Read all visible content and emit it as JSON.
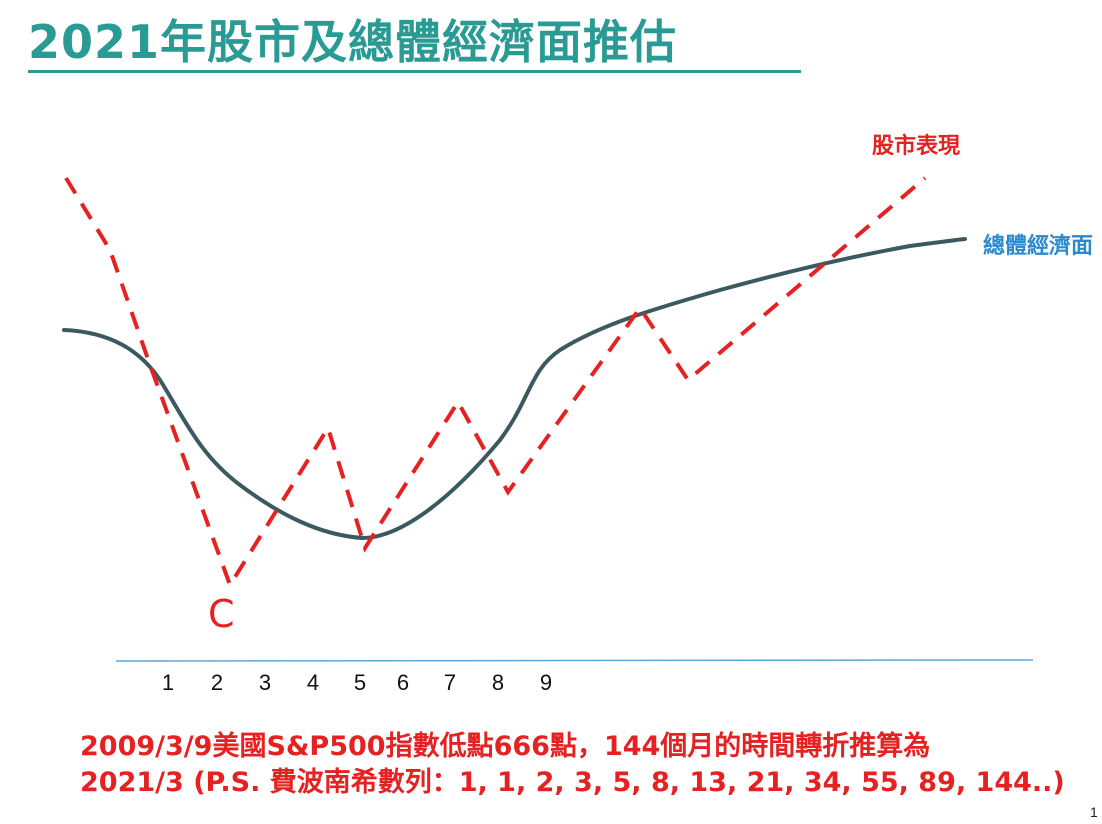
{
  "title": "2021年股市及總體經濟面推估",
  "legend": {
    "stock_label": "股市表現",
    "economy_label": "總體經濟面",
    "stock_color": "#e62121",
    "economy_color": "#2a8ad0"
  },
  "marker_label": "C",
  "axis_ticks": [
    "1",
    "2",
    "3",
    "4",
    "5",
    "6",
    "7",
    "8",
    "9"
  ],
  "note": {
    "line1": "2009/3/9美國S&P500指數低點666點，144個月的時間轉折推算為",
    "line2": "2021/3 (P.S. 費波南希數列：1, 1, 2, 3, 5, 8, 13, 21, 34, 55, 89, 144..)"
  },
  "page_number": "1"
}
